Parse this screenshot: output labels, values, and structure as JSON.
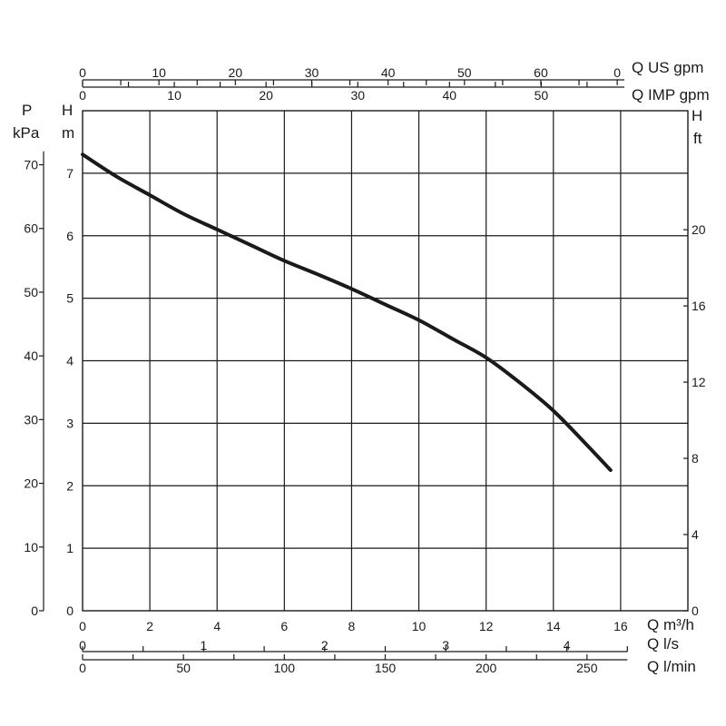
{
  "chart_data": {
    "type": "line",
    "grid": true,
    "xlabel": "Q m³/h",
    "ylabel_left": "H m",
    "ylabel_right": "H ft",
    "pressure_label": "P kPa",
    "x_ticks": [
      "0",
      "2",
      "4",
      "6",
      "8",
      "10",
      "12",
      "14",
      "16"
    ],
    "y_ticks": [
      "0",
      "1",
      "2",
      "3",
      "4",
      "5",
      "6",
      "7"
    ],
    "p_ticks": [
      "0",
      "10",
      "20",
      "30",
      "40",
      "50",
      "60",
      "70"
    ],
    "ft_ticks": [
      "0",
      "4",
      "8",
      "12",
      "16",
      "20"
    ],
    "us_gpm_ticks": [
      "0",
      "10",
      "20",
      "30",
      "40",
      "50",
      "60",
      "0"
    ],
    "imp_gpm_ticks": [
      "0",
      "10",
      "20",
      "30",
      "40",
      "50"
    ],
    "ls_ticks": [
      "0",
      "1",
      "2",
      "3",
      "4"
    ],
    "lmin_ticks": [
      "0",
      "50",
      "100",
      "150",
      "200",
      "250"
    ],
    "axis_labels": {
      "us_gpm": "Q US gpm",
      "imp_gpm": "Q IMP gpm",
      "m3h": "Q m³/h",
      "ls": "Q l/s",
      "lmin": "Q l/min",
      "h_left": [
        "H",
        "m"
      ],
      "h_right": [
        "H",
        "ft"
      ],
      "p": [
        "P",
        "kPa"
      ]
    },
    "series": [
      {
        "x": [
          0,
          1,
          2,
          3,
          4,
          5,
          6,
          7,
          8,
          9,
          10,
          11,
          12,
          13,
          14,
          15,
          15.7
        ],
        "y": [
          7.3,
          6.95,
          6.65,
          6.35,
          6.1,
          5.85,
          5.6,
          5.38,
          5.15,
          4.9,
          4.65,
          4.35,
          4.05,
          3.65,
          3.2,
          2.65,
          2.25
        ]
      }
    ]
  }
}
